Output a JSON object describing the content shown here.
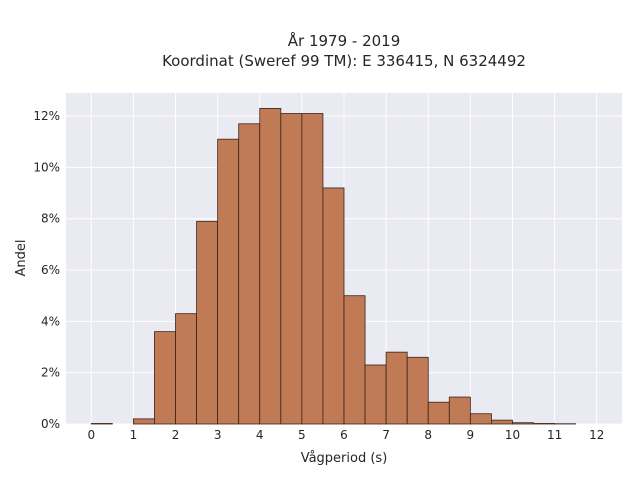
{
  "chart_data": {
    "type": "bar",
    "title_lines": [
      "År 1979 - 2019",
      "Koordinat (Sweref 99 TM): E 336415, N 6324492"
    ],
    "xlabel": "Vågperiod (s)",
    "ylabel": "Andel",
    "xlim": [
      -0.6,
      12.6
    ],
    "ylim": [
      0,
      12.9
    ],
    "xticks": [
      0,
      1,
      2,
      3,
      4,
      5,
      6,
      7,
      8,
      9,
      10,
      11,
      12
    ],
    "yticks": [
      0,
      2,
      4,
      6,
      8,
      10,
      12
    ],
    "ytick_labels": [
      "0%",
      "2%",
      "4%",
      "6%",
      "8%",
      "10%",
      "12%"
    ],
    "grid": true,
    "bar_width": 0.5,
    "bar_color": "#c07a55",
    "background_color": "#eaeaf2",
    "x": [
      0.25,
      0.75,
      1.25,
      1.75,
      2.25,
      2.75,
      3.25,
      3.75,
      4.25,
      4.75,
      5.25,
      5.75,
      6.25,
      6.75,
      7.25,
      7.75,
      8.25,
      8.75,
      9.25,
      9.75,
      10.25,
      10.75,
      11.25,
      11.75
    ],
    "values": [
      0.02,
      0.0,
      0.2,
      3.6,
      4.3,
      7.9,
      11.1,
      11.7,
      12.3,
      12.1,
      12.1,
      9.2,
      5.0,
      2.3,
      2.8,
      2.6,
      0.85,
      1.05,
      0.4,
      0.15,
      0.05,
      0.02,
      0.01,
      0.0
    ]
  }
}
